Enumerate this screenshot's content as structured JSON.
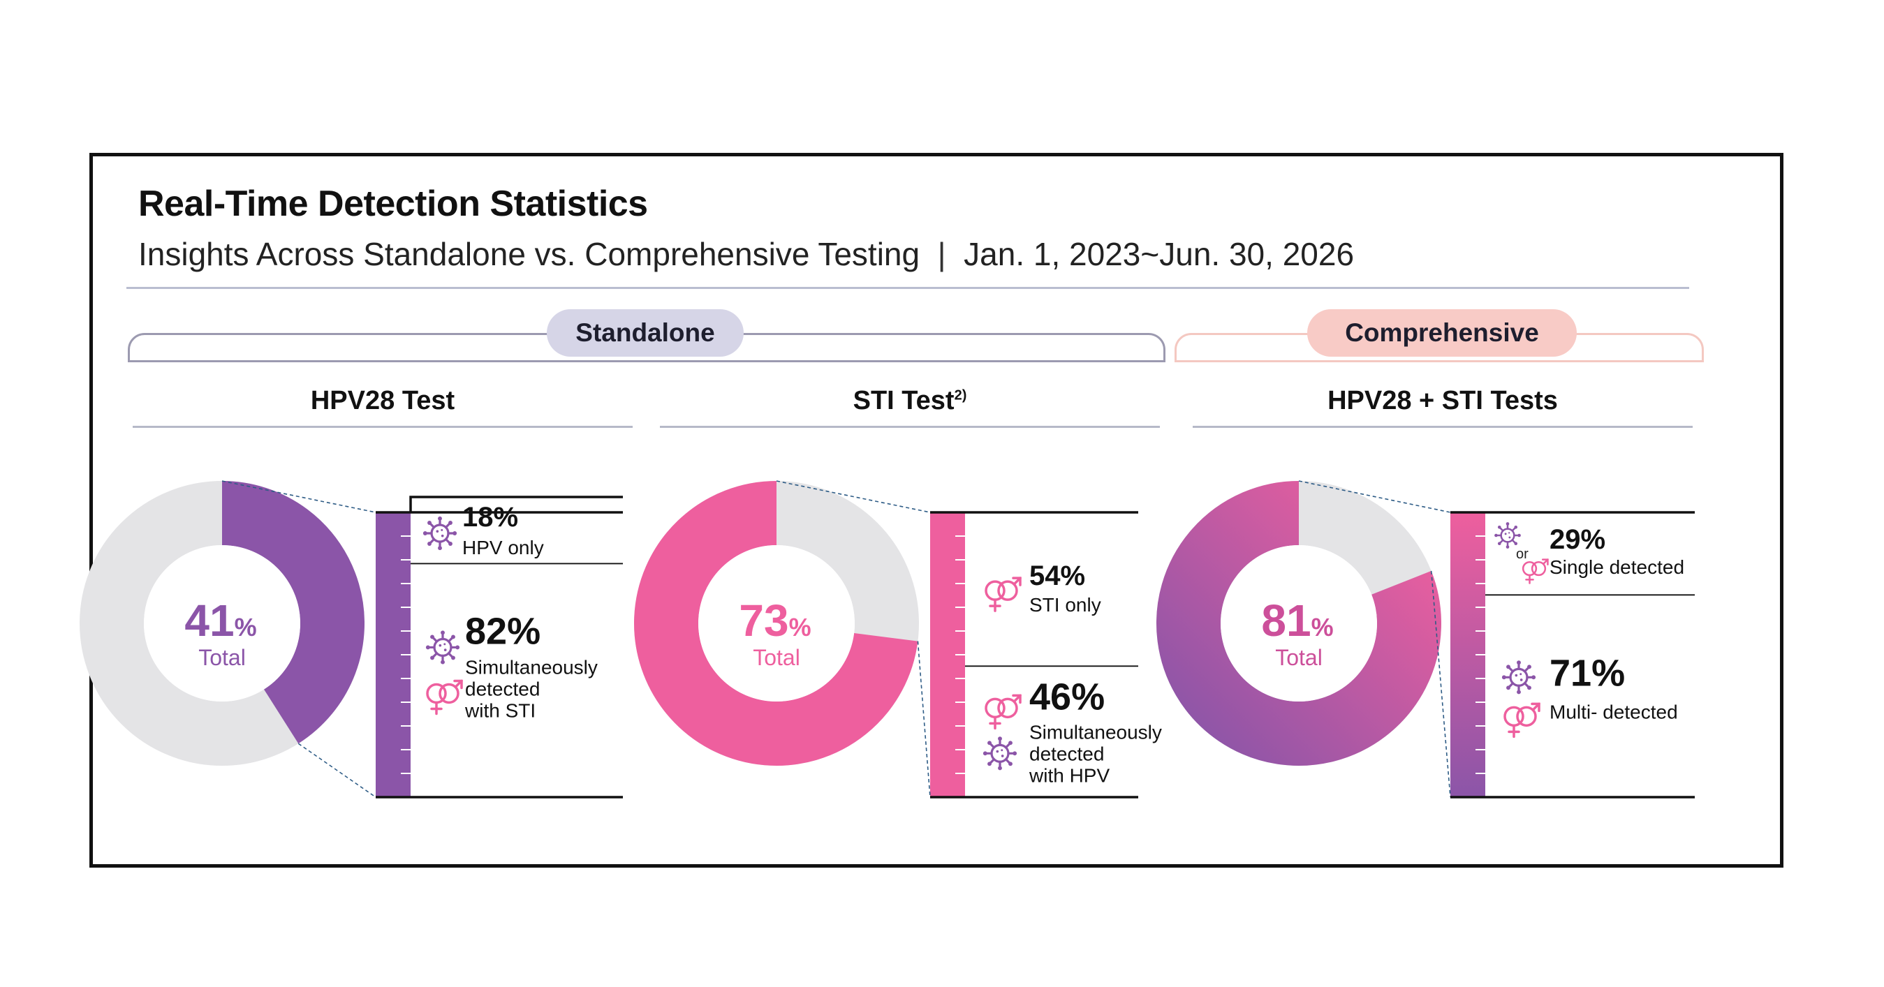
{
  "header": {
    "title": "Real-Time Detection Statistics",
    "subtitle": "Insights Across Standalone vs. Comprehensive Testing",
    "date_range": "Jan. 1, 2023~Jun. 30, 2026"
  },
  "groups": {
    "standalone": "Standalone",
    "comprehensive": "Comprehensive"
  },
  "chart_data": [
    {
      "type": "pie",
      "title": "HPV28 Test",
      "total_value": 41,
      "total_pct": "41",
      "total_unit": "%",
      "total_label": "Total",
      "colors": {
        "fill": "#8b55a8",
        "rest": "#e4e4e6"
      },
      "breakdown": [
        {
          "value": 18,
          "pct": "18%",
          "lines": [
            "HPV only"
          ],
          "icons": [
            "virus-icon"
          ]
        },
        {
          "value": 82,
          "pct": "82%",
          "lines": [
            "Simultaneously",
            "detected",
            "with STI"
          ],
          "icons": [
            "virus-icon",
            "gender-icon"
          ]
        }
      ]
    },
    {
      "type": "pie",
      "title": "STI Test",
      "title_sup": "2)",
      "total_value": 73,
      "total_pct": "73",
      "total_unit": "%",
      "total_label": "Total",
      "colors": {
        "fill": "#ee5f9e",
        "rest": "#e4e4e6"
      },
      "breakdown": [
        {
          "value": 54,
          "pct": "54%",
          "lines": [
            "STI only"
          ],
          "icons": [
            "gender-icon"
          ]
        },
        {
          "value": 46,
          "pct": "46%",
          "lines": [
            "Simultaneously",
            "detected",
            "with HPV"
          ],
          "icons": [
            "gender-icon",
            "virus-icon"
          ]
        }
      ]
    },
    {
      "type": "pie",
      "title": "HPV28 + STI Tests",
      "total_value": 81,
      "total_pct": "81",
      "total_unit": "%",
      "total_label": "Total",
      "colors": {
        "fill_start": "#ee5f9e",
        "fill_end": "#8b55a8",
        "rest": "#e4e4e6"
      },
      "breakdown": [
        {
          "value": 29,
          "pct": "29%",
          "lines": [
            "Single detected"
          ],
          "icons": [
            "virus-icon",
            "gender-icon"
          ],
          "connector": "or"
        },
        {
          "value": 71,
          "pct": "71%",
          "lines": [
            "Multi- detected"
          ],
          "icons": [
            "virus-icon",
            "gender-icon"
          ]
        }
      ]
    }
  ]
}
